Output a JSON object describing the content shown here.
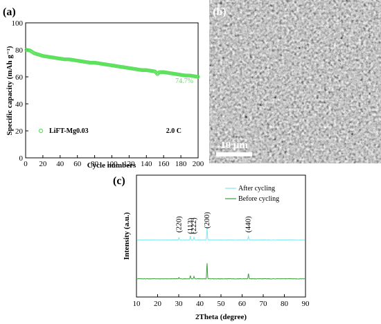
{
  "chart_data": [
    {
      "panel_label": "(a)",
      "type": "scatter",
      "xlabel": "Cycle numbers",
      "ylabel": "Specific capacity (mAh g⁻¹)",
      "xlim": [
        0,
        200
      ],
      "ylim": [
        0,
        100
      ],
      "xticks": [
        "0",
        "20",
        "40",
        "60",
        "80",
        "100",
        "120",
        "140",
        "160",
        "180",
        "200"
      ],
      "yticks": [
        "0",
        "20",
        "40",
        "60",
        "80",
        "100"
      ],
      "series": [
        {
          "name": "LiFT-Mg0.03",
          "color": "#5ce05c",
          "marker": "open-circle",
          "x": [
            1,
            5,
            10,
            15,
            20,
            25,
            30,
            35,
            40,
            45,
            50,
            55,
            60,
            65,
            70,
            75,
            80,
            85,
            90,
            95,
            100,
            105,
            110,
            115,
            120,
            125,
            130,
            135,
            140,
            145,
            150,
            153,
            155,
            160,
            165,
            170,
            175,
            180,
            185,
            190,
            195,
            200
          ],
          "y": [
            80,
            79.5,
            77.5,
            76.5,
            75.5,
            75,
            74.5,
            74,
            73.5,
            73,
            73,
            72.5,
            72,
            71.5,
            71,
            70.5,
            70.5,
            70,
            69.5,
            69,
            68.5,
            68,
            67.5,
            67,
            66.5,
            66,
            65.5,
            65,
            65,
            64.5,
            64,
            62,
            63.5,
            63.5,
            63,
            62.5,
            62,
            61.5,
            61,
            61,
            60.5,
            60
          ]
        }
      ],
      "annotations": {
        "retention": "74.7%",
        "rate": "2.0 C"
      },
      "legend_position": "bottom-left"
    },
    {
      "panel_label": "(c)",
      "type": "line",
      "xlabel": "2Theta (degree)",
      "ylabel": "Intensity (a.u.)",
      "xlim": [
        10,
        90
      ],
      "xticks": [
        "10",
        "20",
        "30",
        "40",
        "50",
        "60",
        "70",
        "80",
        "90"
      ],
      "peak_labels": [
        {
          "label": "(220)",
          "x": 30.1
        },
        {
          "label": "(113)",
          "x": 35.5
        },
        {
          "label": "(222)",
          "x": 37.2
        },
        {
          "label": "(200)",
          "x": 43.4
        },
        {
          "label": "(440)",
          "x": 63.0
        }
      ],
      "series": [
        {
          "name": "After cycling",
          "color": "#7fe8f0",
          "peaks": [
            {
              "x": 30.1,
              "h": 0.1
            },
            {
              "x": 35.5,
              "h": 0.15
            },
            {
              "x": 37.2,
              "h": 0.1
            },
            {
              "x": 43.4,
              "h": 0.45
            },
            {
              "x": 63.0,
              "h": 0.15
            }
          ]
        },
        {
          "name": "Before cycling",
          "color": "#3a9e3a",
          "peaks": [
            {
              "x": 30.1,
              "h": 0.1
            },
            {
              "x": 35.5,
              "h": 0.2
            },
            {
              "x": 37.2,
              "h": 0.15
            },
            {
              "x": 43.4,
              "h": 1.0
            },
            {
              "x": 63.0,
              "h": 0.35
            }
          ]
        }
      ],
      "legend_position": "top-right"
    }
  ],
  "sem_panel": {
    "panel_label": "(b)",
    "scale_bar_label": "10 μm"
  }
}
